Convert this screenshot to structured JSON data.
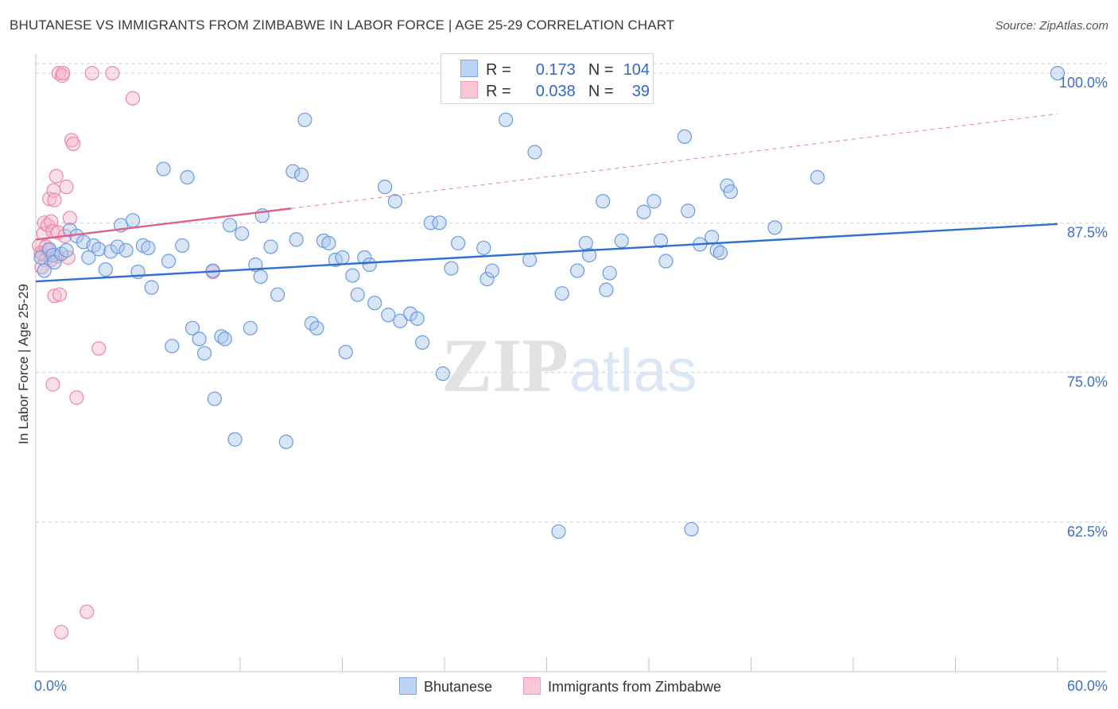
{
  "header": {
    "title": "BHUTANESE VS IMMIGRANTS FROM ZIMBABWE IN LABOR FORCE | AGE 25-29 CORRELATION CHART",
    "source": "Source: ZipAtlas.com"
  },
  "legend": {
    "rows": [
      {
        "r_label": "R =",
        "r_value": "0.173",
        "n_label": "N =",
        "n_value": "104"
      },
      {
        "r_label": "R =",
        "r_value": "0.038",
        "n_label": "N =",
        "n_value": "39"
      }
    ]
  },
  "bottom_legend": [
    "Bhutanese",
    "Immigrants from Zimbabwe"
  ],
  "watermark": {
    "zip": "ZIP",
    "atlas": "atlas"
  },
  "colors": {
    "blue_fill": "#a9c6ee",
    "blue_stroke": "#6b9be0",
    "blue_line": "#2f6fd0",
    "pink_fill": "#f7b8cb",
    "pink_stroke": "#ec87a6",
    "pink_line": "#e0608a",
    "grid": "#c9cfd9",
    "tick_text": "#3d6fc8"
  },
  "chart_data": {
    "type": "scatter",
    "title": "BHUTANESE VS IMMIGRANTS FROM ZIMBABWE IN LABOR FORCE | AGE 25-29 CORRELATION CHART",
    "xlabel": "",
    "ylabel": "In Labor Force | Age 25-29",
    "xlim": [
      0,
      60
    ],
    "ylim": [
      50,
      101.6
    ],
    "x_tick_labels": [
      "0.0%",
      "60.0%"
    ],
    "y_ticks": [
      62.5,
      75.0,
      87.5,
      100.0
    ],
    "y_tick_labels": [
      "62.5%",
      "75.0%",
      "87.5%",
      "100.0%"
    ],
    "grid": "horizontal dashed",
    "series": [
      {
        "name": "Bhutanese",
        "r": 0.173,
        "n": 104,
        "trend": {
          "x": [
            0,
            60
          ],
          "y": [
            82.6,
            87.4
          ],
          "style": "solid"
        },
        "points": [
          [
            0.3,
            84.6
          ],
          [
            0.5,
            83.5
          ],
          [
            0.8,
            85.3
          ],
          [
            1.0,
            84.8
          ],
          [
            1.1,
            84.2
          ],
          [
            1.5,
            84.9
          ],
          [
            1.8,
            85.2
          ],
          [
            2.0,
            86.9
          ],
          [
            2.4,
            86.4
          ],
          [
            2.8,
            85.9
          ],
          [
            3.1,
            84.6
          ],
          [
            3.4,
            85.6
          ],
          [
            3.7,
            85.3
          ],
          [
            4.1,
            83.6
          ],
          [
            4.4,
            85.1
          ],
          [
            4.8,
            85.5
          ],
          [
            5.0,
            87.3
          ],
          [
            5.3,
            85.2
          ],
          [
            5.7,
            87.7
          ],
          [
            6.0,
            83.4
          ],
          [
            6.3,
            85.6
          ],
          [
            6.6,
            85.4
          ],
          [
            6.8,
            82.1
          ],
          [
            7.5,
            92.0
          ],
          [
            7.8,
            84.3
          ],
          [
            8.0,
            77.2
          ],
          [
            8.6,
            85.6
          ],
          [
            8.9,
            91.3
          ],
          [
            9.2,
            78.7
          ],
          [
            9.6,
            77.8
          ],
          [
            9.9,
            76.6
          ],
          [
            10.4,
            83.5
          ],
          [
            10.5,
            72.8
          ],
          [
            10.9,
            78.0
          ],
          [
            11.1,
            77.8
          ],
          [
            11.4,
            87.3
          ],
          [
            11.7,
            69.4
          ],
          [
            12.1,
            86.6
          ],
          [
            12.6,
            78.7
          ],
          [
            12.9,
            84.0
          ],
          [
            13.2,
            83.0
          ],
          [
            13.3,
            88.1
          ],
          [
            13.8,
            85.5
          ],
          [
            14.2,
            81.5
          ],
          [
            14.7,
            69.2
          ],
          [
            15.1,
            91.8
          ],
          [
            15.3,
            86.1
          ],
          [
            15.6,
            91.5
          ],
          [
            15.8,
            96.1
          ],
          [
            16.2,
            79.1
          ],
          [
            16.5,
            78.7
          ],
          [
            16.9,
            86.0
          ],
          [
            17.2,
            85.8
          ],
          [
            17.6,
            84.4
          ],
          [
            18.0,
            84.6
          ],
          [
            18.2,
            76.7
          ],
          [
            18.6,
            83.1
          ],
          [
            18.9,
            81.5
          ],
          [
            19.3,
            84.6
          ],
          [
            19.6,
            84.0
          ],
          [
            19.9,
            80.8
          ],
          [
            20.5,
            90.5
          ],
          [
            20.7,
            79.8
          ],
          [
            21.1,
            89.3
          ],
          [
            21.4,
            79.3
          ],
          [
            22.0,
            79.9
          ],
          [
            22.4,
            79.5
          ],
          [
            22.7,
            77.5
          ],
          [
            23.2,
            87.5
          ],
          [
            23.7,
            87.5
          ],
          [
            23.9,
            74.9
          ],
          [
            24.4,
            83.7
          ],
          [
            24.8,
            85.8
          ],
          [
            26.3,
            85.4
          ],
          [
            26.5,
            82.8
          ],
          [
            26.8,
            83.5
          ],
          [
            27.6,
            96.1
          ],
          [
            29.0,
            84.4
          ],
          [
            29.3,
            93.4
          ],
          [
            30.7,
            61.7
          ],
          [
            30.9,
            81.6
          ],
          [
            31.8,
            83.5
          ],
          [
            32.3,
            85.8
          ],
          [
            32.5,
            84.8
          ],
          [
            33.3,
            89.3
          ],
          [
            33.5,
            81.9
          ],
          [
            33.7,
            83.3
          ],
          [
            34.4,
            86.0
          ],
          [
            35.7,
            88.4
          ],
          [
            36.3,
            89.3
          ],
          [
            36.7,
            86.0
          ],
          [
            37.0,
            84.3
          ],
          [
            38.1,
            94.7
          ],
          [
            38.3,
            88.5
          ],
          [
            38.5,
            61.9
          ],
          [
            39.0,
            85.7
          ],
          [
            39.7,
            86.3
          ],
          [
            40.0,
            85.2
          ],
          [
            40.2,
            85.0
          ],
          [
            40.6,
            90.6
          ],
          [
            40.8,
            90.1
          ],
          [
            43.4,
            87.1
          ],
          [
            45.9,
            91.3
          ],
          [
            60.0,
            100.0
          ]
        ]
      },
      {
        "name": "Immigrants from Zimbabwe",
        "r": 0.038,
        "n": 39,
        "trend": {
          "x": [
            0,
            15
          ],
          "y": [
            86.1,
            88.7
          ],
          "style": "solid then dashed to 60",
          "extended": {
            "x": [
              15,
              60
            ],
            "y": [
              88.7,
              96.6
            ]
          }
        },
        "points": [
          [
            0.2,
            85.6
          ],
          [
            0.3,
            85.0
          ],
          [
            0.4,
            84.9
          ],
          [
            0.45,
            86.6
          ],
          [
            0.5,
            87.5
          ],
          [
            0.55,
            84.4
          ],
          [
            0.6,
            85.5
          ],
          [
            0.7,
            87.3
          ],
          [
            0.75,
            85.2
          ],
          [
            0.8,
            89.5
          ],
          [
            0.9,
            87.6
          ],
          [
            1.0,
            86.8
          ],
          [
            1.0,
            74.0
          ],
          [
            1.05,
            90.2
          ],
          [
            1.1,
            89.4
          ],
          [
            1.1,
            81.4
          ],
          [
            1.2,
            91.4
          ],
          [
            1.25,
            84.7
          ],
          [
            1.3,
            86.7
          ],
          [
            1.35,
            100.0
          ],
          [
            1.4,
            81.5
          ],
          [
            1.5,
            53.3
          ],
          [
            1.55,
            99.8
          ],
          [
            1.6,
            100.0
          ],
          [
            1.8,
            90.5
          ],
          [
            1.9,
            84.6
          ],
          [
            2.0,
            87.9
          ],
          [
            2.1,
            94.4
          ],
          [
            2.2,
            94.1
          ],
          [
            2.4,
            72.9
          ],
          [
            3.0,
            55.0
          ],
          [
            3.3,
            100.0
          ],
          [
            3.7,
            77.0
          ],
          [
            4.5,
            100.0
          ],
          [
            5.7,
            97.9
          ],
          [
            10.4,
            83.4
          ],
          [
            0.35,
            83.8
          ],
          [
            0.9,
            84.4
          ],
          [
            1.7,
            86.4
          ]
        ]
      }
    ]
  }
}
